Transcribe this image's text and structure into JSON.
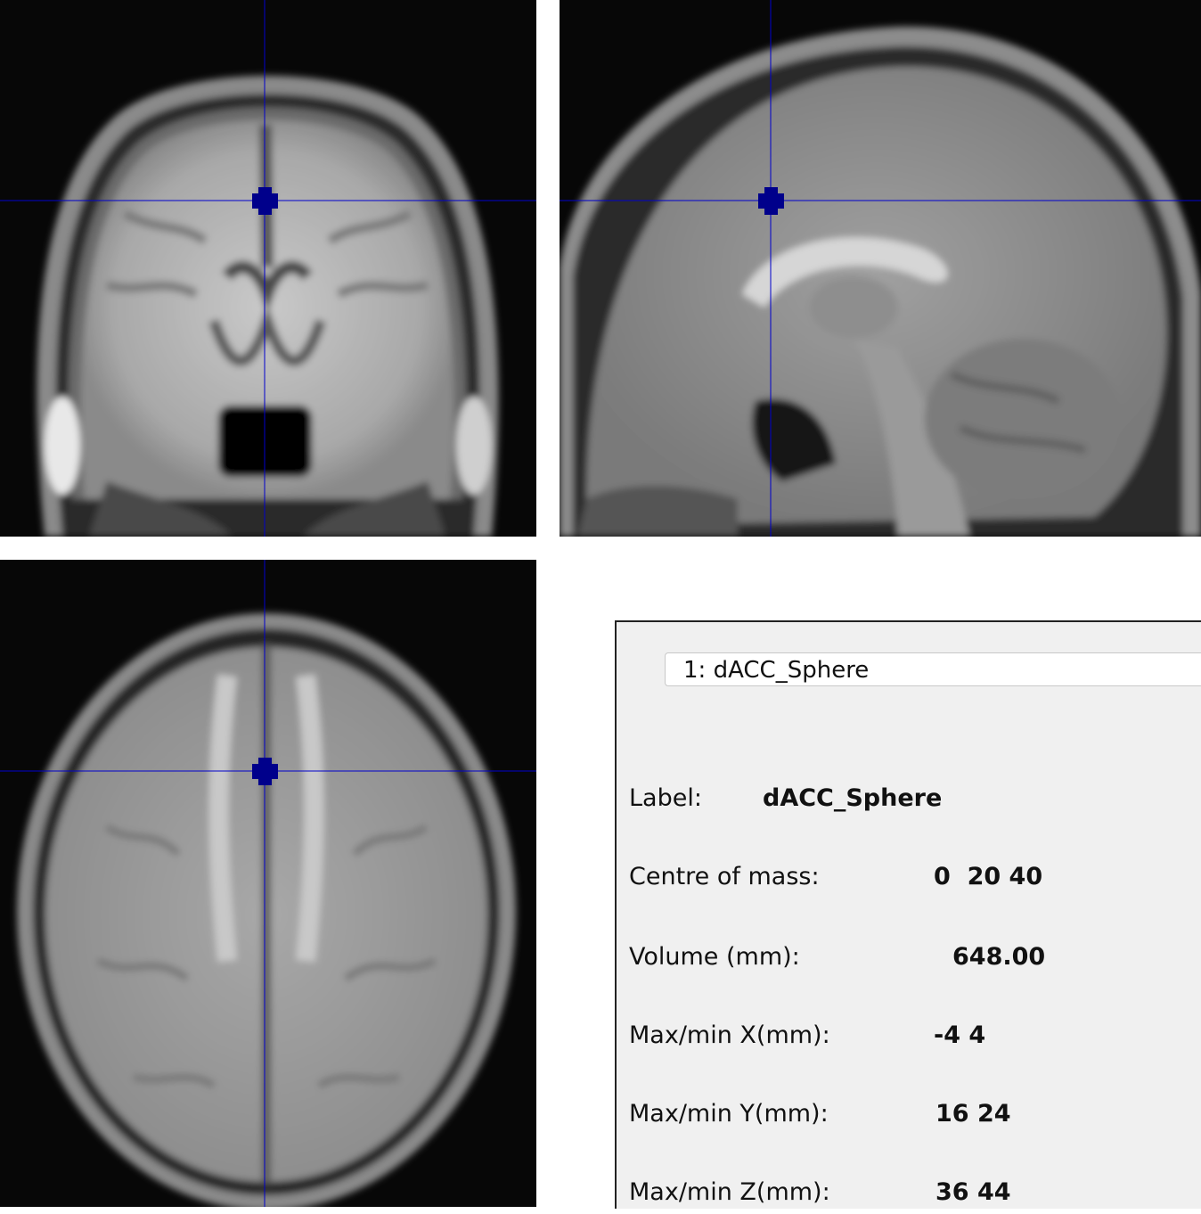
{
  "views": {
    "coronal": {
      "name": "coronal-view"
    },
    "sagittal": {
      "name": "sagittal-view"
    },
    "axial": {
      "name": "axial-view"
    },
    "crosshair_color": "#0000cc"
  },
  "roi_panel": {
    "selector": {
      "value": "1: dACC_Sphere"
    },
    "label": {
      "label": "Label:",
      "value": "dACC_Sphere"
    },
    "centre_of_mass": {
      "label": "Centre of mass:",
      "value": "0  20 40"
    },
    "volume": {
      "label": "Volume (mm):",
      "value": "648.00"
    },
    "max_min_x": {
      "label": "Max/min X(mm):",
      "value": "-4 4"
    },
    "max_min_y": {
      "label": "Max/min Y(mm):",
      "value": "16 24"
    },
    "max_min_z": {
      "label": "Max/min Z(mm):",
      "value": "36 44"
    }
  }
}
